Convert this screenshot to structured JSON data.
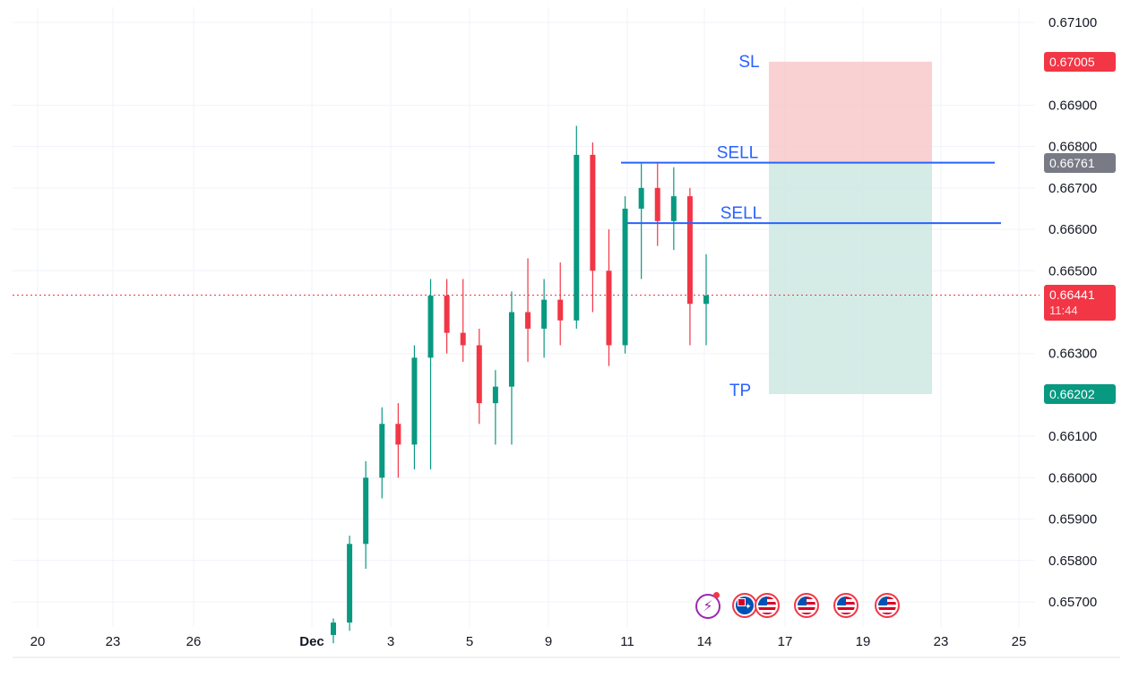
{
  "chart_data": {
    "type": "candlestick",
    "symbol_hint": "",
    "x_axis": {
      "tick_labels": [
        "20",
        "23",
        "26",
        "Dec",
        "3",
        "5",
        "9",
        "11",
        "14",
        "17",
        "19",
        "23",
        "25"
      ]
    },
    "y_axis": {
      "tick_labels": [
        "0.67100",
        "0.66900",
        "0.66800",
        "0.66700",
        "0.66600",
        "0.66500",
        "0.66300",
        "0.66100",
        "0.66000",
        "0.65900",
        "0.65800",
        "0.65700"
      ],
      "range": [
        0.6563,
        0.6714
      ]
    },
    "annotations": {
      "sl": {
        "label": "SL",
        "price": 0.67005
      },
      "sell_1": {
        "label": "SELL",
        "price": 0.66761
      },
      "sell_2": {
        "label": "SELL",
        "price": 0.66615
      },
      "tp": {
        "label": "TP",
        "price": 0.66202
      }
    },
    "price_tags": {
      "sl": {
        "value": "0.67005",
        "color": "#f23645"
      },
      "entry": {
        "value": "0.66761",
        "color": "#787b86"
      },
      "current": {
        "value": "0.66441",
        "sub": "11:44",
        "color": "#f23645"
      },
      "tp": {
        "value": "0.66202",
        "color": "#089981"
      }
    },
    "current_price": 0.66441,
    "colors": {
      "up": "#089981",
      "down": "#f23645",
      "sell_line": "#2962ff",
      "risk_zone": "#f7c5c8",
      "reward_zone": "#cfe9e3",
      "grid": "#f0f3fa"
    },
    "grid": true,
    "candles_approx": [
      {
        "t": "Dec 2",
        "o": 0.6562,
        "h": 0.6566,
        "l": 0.656,
        "c": 0.6565
      },
      {
        "t": "Dec 3",
        "o": 0.6565,
        "h": 0.6586,
        "l": 0.6563,
        "c": 0.6584
      },
      {
        "t": "Dec 4 a",
        "o": 0.6584,
        "h": 0.6604,
        "l": 0.6578,
        "c": 0.66
      },
      {
        "t": "Dec 4 b",
        "o": 0.66,
        "h": 0.6617,
        "l": 0.6595,
        "c": 0.6613
      },
      {
        "t": "Dec 5 a",
        "o": 0.6613,
        "h": 0.6618,
        "l": 0.66,
        "c": 0.6608
      },
      {
        "t": "Dec 5 b",
        "o": 0.6608,
        "h": 0.6632,
        "l": 0.6602,
        "c": 0.6629
      },
      {
        "t": "Dec 6 a",
        "o": 0.6629,
        "h": 0.6648,
        "l": 0.6602,
        "c": 0.6644
      },
      {
        "t": "Dec 6 b",
        "o": 0.6644,
        "h": 0.6648,
        "l": 0.663,
        "c": 0.6635
      },
      {
        "t": "Dec 7",
        "o": 0.6635,
        "h": 0.6648,
        "l": 0.6628,
        "c": 0.6632
      },
      {
        "t": "Dec 8 a",
        "o": 0.6632,
        "h": 0.6636,
        "l": 0.6613,
        "c": 0.6618
      },
      {
        "t": "Dec 8 b",
        "o": 0.6618,
        "h": 0.6626,
        "l": 0.6608,
        "c": 0.6622
      },
      {
        "t": "Dec 9 a",
        "o": 0.6622,
        "h": 0.6645,
        "l": 0.6608,
        "c": 0.664
      },
      {
        "t": "Dec 9 b",
        "o": 0.664,
        "h": 0.6653,
        "l": 0.6628,
        "c": 0.6636
      },
      {
        "t": "Dec 10 a",
        "o": 0.6636,
        "h": 0.6648,
        "l": 0.6629,
        "c": 0.6643
      },
      {
        "t": "Dec 10 b",
        "o": 0.6643,
        "h": 0.6652,
        "l": 0.6632,
        "c": 0.6638
      },
      {
        "t": "Dec 10 c",
        "o": 0.6638,
        "h": 0.6685,
        "l": 0.6636,
        "c": 0.6678
      },
      {
        "t": "Dec 11 a",
        "o": 0.6678,
        "h": 0.6681,
        "l": 0.664,
        "c": 0.665
      },
      {
        "t": "Dec 11 b",
        "o": 0.665,
        "h": 0.666,
        "l": 0.6627,
        "c": 0.6632
      },
      {
        "t": "Dec 12 a",
        "o": 0.6632,
        "h": 0.6668,
        "l": 0.663,
        "c": 0.6665
      },
      {
        "t": "Dec 12 b",
        "o": 0.6665,
        "h": 0.6676,
        "l": 0.6648,
        "c": 0.667
      },
      {
        "t": "Dec 13 a",
        "o": 0.667,
        "h": 0.6676,
        "l": 0.6656,
        "c": 0.6662
      },
      {
        "t": "Dec 13 b",
        "o": 0.6662,
        "h": 0.6675,
        "l": 0.6655,
        "c": 0.6668
      },
      {
        "t": "Dec 13 c",
        "o": 0.6668,
        "h": 0.667,
        "l": 0.6632,
        "c": 0.6642
      },
      {
        "t": "Dec 14",
        "o": 0.6642,
        "h": 0.6654,
        "l": 0.6632,
        "c": 0.6644
      }
    ]
  },
  "event_icons": [
    {
      "name": "flash-event-icon",
      "kind": "flash"
    },
    {
      "name": "au-flag-icon",
      "kind": "au"
    },
    {
      "name": "us-flag-icon-1",
      "kind": "us"
    },
    {
      "name": "us-flag-icon-2",
      "kind": "us"
    },
    {
      "name": "us-flag-icon-3",
      "kind": "us"
    },
    {
      "name": "us-flag-icon-4",
      "kind": "us"
    }
  ]
}
